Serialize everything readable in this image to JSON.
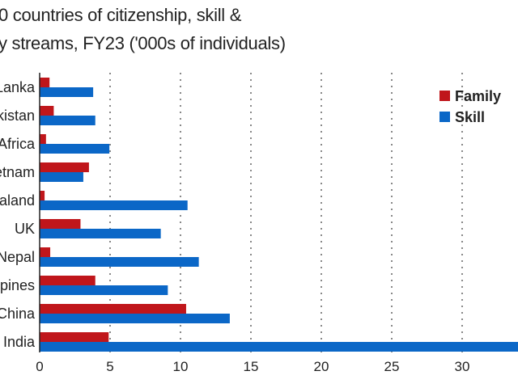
{
  "chart_data": {
    "type": "bar",
    "orientation": "horizontal",
    "title_lines": [
      "0 countries of citizenship, skill &",
      "y streams, FY23 ('000s of individuals)"
    ],
    "categories": [
      "Lanka",
      "kistan",
      "Africa",
      "etnam",
      "aland",
      "UK",
      "Nepal",
      "ppines",
      "China",
      "India"
    ],
    "series": [
      {
        "name": "Family",
        "color": "#c0161b",
        "values": [
          0.7,
          1.0,
          0.45,
          3.5,
          0.35,
          2.9,
          0.75,
          3.95,
          10.4,
          4.9
        ]
      },
      {
        "name": "Skill",
        "color": "#0b67c7",
        "values": [
          3.8,
          3.95,
          4.95,
          3.1,
          10.5,
          8.6,
          11.3,
          9.1,
          13.5,
          36
        ]
      }
    ],
    "xticks": [
      "0",
      "5",
      "10",
      "15",
      "20",
      "25",
      "30"
    ],
    "xlim": [
      0,
      35
    ],
    "grid": "vertical dotted",
    "legend": "top-right"
  }
}
